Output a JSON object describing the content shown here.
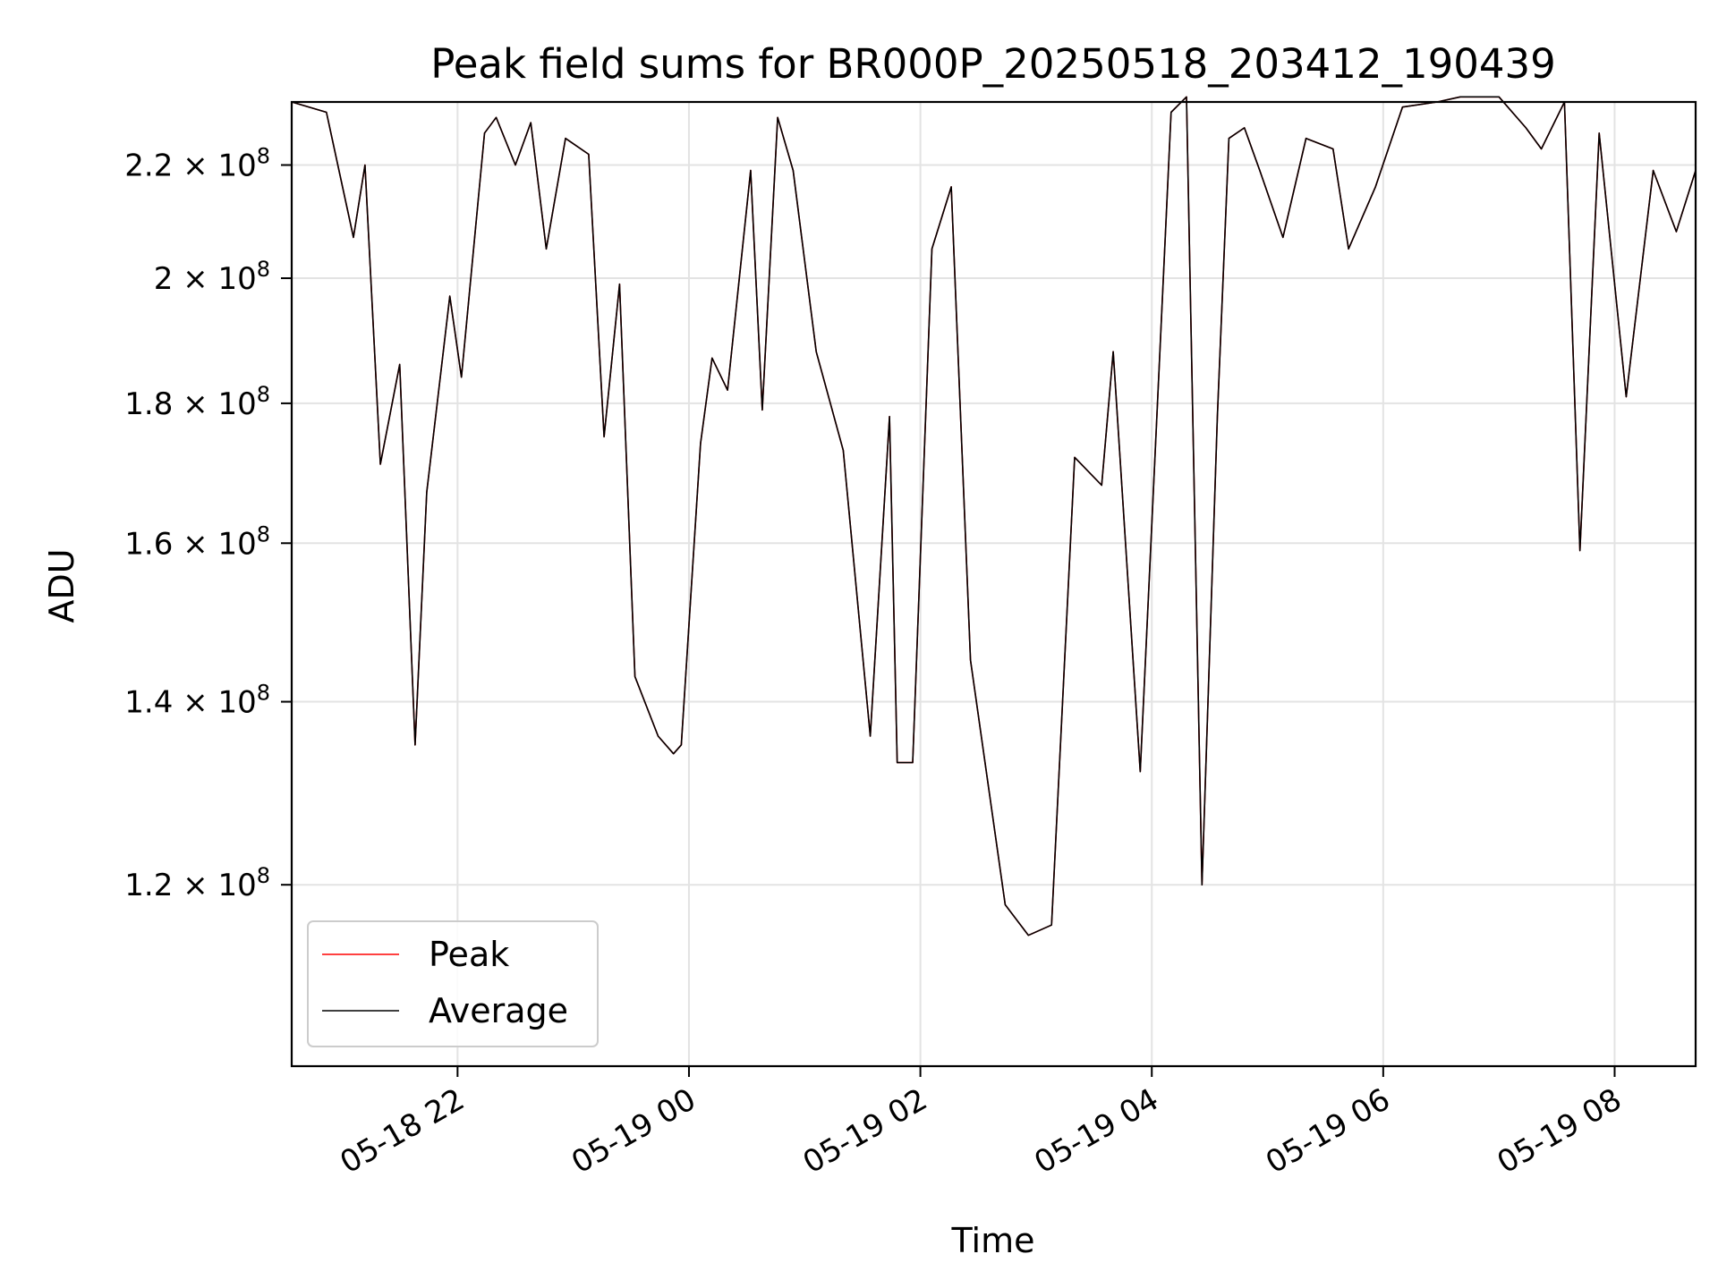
{
  "chart_data": {
    "type": "line",
    "title": "Peak field sums for BR000P_20250518_203412_190439",
    "xlabel": "Time",
    "ylabel": "ADU",
    "yscale": "log",
    "ylim": [
      103000000,
      232000000
    ],
    "xlim": [
      "2025-05-18 20:34",
      "2025-05-19 08:42"
    ],
    "grid": true,
    "legend_position": "lower-left",
    "x_ticks": [
      "05-18 22",
      "05-19 00",
      "05-19 02",
      "05-19 04",
      "05-19 06",
      "05-19 08"
    ],
    "y_ticks": [
      {
        "value": 120000000,
        "mantissa": "1.2",
        "base": "10",
        "exp": "8"
      },
      {
        "value": 140000000,
        "mantissa": "1.4",
        "base": "10",
        "exp": "8"
      },
      {
        "value": 160000000,
        "mantissa": "1.6",
        "base": "10",
        "exp": "8"
      },
      {
        "value": 180000000,
        "mantissa": "1.8",
        "base": "10",
        "exp": "8"
      },
      {
        "value": 200000000,
        "mantissa": "2",
        "base": "10",
        "exp": "8"
      },
      {
        "value": 220000000,
        "mantissa": "2.2",
        "base": "10",
        "exp": "8"
      }
    ],
    "x": [
      "2025-05-18 20:34",
      "2025-05-18 20:52",
      "2025-05-18 21:06",
      "2025-05-18 21:12",
      "2025-05-18 21:20",
      "2025-05-18 21:30",
      "2025-05-18 21:38",
      "2025-05-18 21:44",
      "2025-05-18 21:56",
      "2025-05-18 22:02",
      "2025-05-18 22:14",
      "2025-05-18 22:20",
      "2025-05-18 22:30",
      "2025-05-18 22:38",
      "2025-05-18 22:46",
      "2025-05-18 22:56",
      "2025-05-18 23:08",
      "2025-05-18 23:16",
      "2025-05-18 23:24",
      "2025-05-18 23:32",
      "2025-05-18 23:44",
      "2025-05-18 23:52",
      "2025-05-18 23:56",
      "2025-05-19 00:06",
      "2025-05-19 00:12",
      "2025-05-19 00:20",
      "2025-05-19 00:32",
      "2025-05-19 00:38",
      "2025-05-19 00:46",
      "2025-05-19 00:54",
      "2025-05-19 01:06",
      "2025-05-19 01:20",
      "2025-05-19 01:34",
      "2025-05-19 01:44",
      "2025-05-19 01:48",
      "2025-05-19 01:56",
      "2025-05-19 02:06",
      "2025-05-19 02:16",
      "2025-05-19 02:26",
      "2025-05-19 02:44",
      "2025-05-19 02:56",
      "2025-05-19 03:08",
      "2025-05-19 03:20",
      "2025-05-19 03:34",
      "2025-05-19 03:40",
      "2025-05-19 03:54",
      "2025-05-19 04:10",
      "2025-05-19 04:18",
      "2025-05-19 04:26",
      "2025-05-19 04:34",
      "2025-05-19 04:40",
      "2025-05-19 04:48",
      "2025-05-19 04:56",
      "2025-05-19 05:08",
      "2025-05-19 05:20",
      "2025-05-19 05:34",
      "2025-05-19 05:42",
      "2025-05-19 05:56",
      "2025-05-19 06:10",
      "2025-05-19 06:28",
      "2025-05-19 06:40",
      "2025-05-19 07:00",
      "2025-05-19 07:14",
      "2025-05-19 07:22",
      "2025-05-19 07:34",
      "2025-05-19 07:42",
      "2025-05-19 07:52",
      "2025-05-19 08:06",
      "2025-05-19 08:20",
      "2025-05-19 08:32",
      "2025-05-19 08:42"
    ],
    "series": [
      {
        "name": "Peak",
        "color": "#ff0000",
        "width": 1.6,
        "values": [
          232000000,
          230000000,
          207000000,
          220000000,
          171000000,
          186000000,
          135000000,
          167000000,
          197000000,
          184000000,
          226000000,
          229000000,
          220000000,
          228000000,
          205000000,
          225000000,
          222000000,
          175000000,
          199000000,
          143000000,
          136000000,
          134000000,
          135000000,
          174000000,
          187000000,
          182000000,
          219000000,
          179000000,
          229000000,
          219000000,
          188000000,
          173000000,
          136000000,
          178000000,
          133000000,
          133000000,
          205000000,
          216000000,
          145000000,
          118000000,
          115000000,
          116000000,
          172000000,
          168000000,
          188000000,
          132000000,
          230000000,
          233000000,
          120000000,
          178000000,
          225000000,
          227000000,
          219000000,
          207000000,
          225000000,
          223000000,
          205000000,
          216000000,
          231000000,
          232000000,
          233000000,
          233000000,
          227000000,
          223000000,
          232000000,
          159000000,
          226000000,
          181000000,
          219000000,
          208000000,
          219000000
        ]
      },
      {
        "name": "Average",
        "color": "#000000",
        "width": 1.6,
        "values": [
          232000000,
          230000000,
          207000000,
          220000000,
          171000000,
          186000000,
          135000000,
          167000000,
          197000000,
          184000000,
          226000000,
          229000000,
          220000000,
          228000000,
          205000000,
          225000000,
          222000000,
          175000000,
          199000000,
          143000000,
          136000000,
          134000000,
          135000000,
          174000000,
          187000000,
          182000000,
          219000000,
          179000000,
          229000000,
          219000000,
          188000000,
          173000000,
          136000000,
          178000000,
          133000000,
          133000000,
          205000000,
          216000000,
          145000000,
          118000000,
          115000000,
          116000000,
          172000000,
          168000000,
          188000000,
          132000000,
          230000000,
          233000000,
          120000000,
          178000000,
          225000000,
          227000000,
          219000000,
          207000000,
          225000000,
          223000000,
          205000000,
          216000000,
          231000000,
          232000000,
          233000000,
          233000000,
          227000000,
          223000000,
          232000000,
          159000000,
          226000000,
          181000000,
          219000000,
          208000000,
          219000000
        ]
      }
    ]
  }
}
